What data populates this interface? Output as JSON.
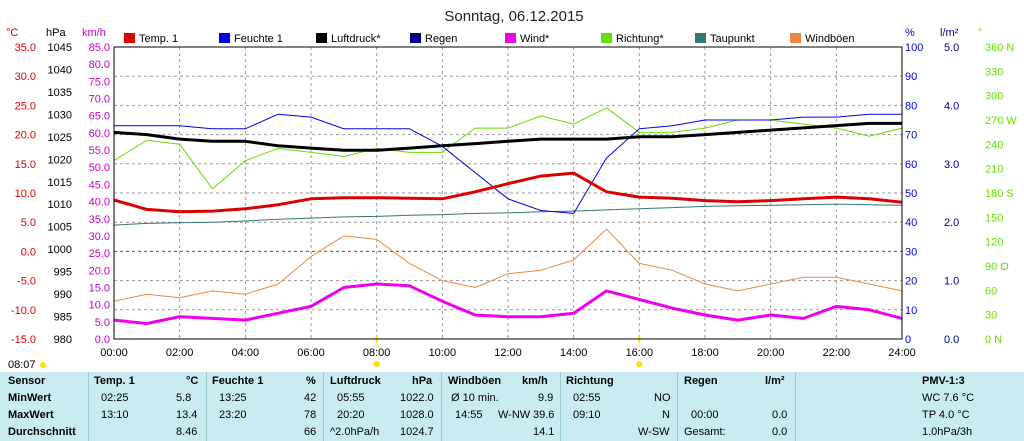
{
  "title": "Sonntag, 06.12.2015",
  "colors": {
    "temp": "#dd0000",
    "humidity": "#0000ee",
    "pressure": "#000000",
    "rain": "#000088",
    "wind": "#ee00ee",
    "direction": "#66dd00",
    "dewpoint": "#337777",
    "gusts": "#ee8844"
  },
  "axes_left": {
    "temp": {
      "unit": "°C",
      "ticks": [
        "35.0",
        "30.0",
        "25.0",
        "20.0",
        "15.0",
        "10.0",
        "5.0",
        "0.0",
        "-5.0",
        "-10.0",
        "-15.0"
      ]
    },
    "pressure": {
      "unit": "hPa",
      "ticks": [
        "1045",
        "1040",
        "1035",
        "1030",
        "1025",
        "1020",
        "1015",
        "1010",
        "1005",
        "1000",
        "995",
        "990",
        "985",
        "980"
      ]
    },
    "wind": {
      "unit": "km/h",
      "ticks": [
        "85.0",
        "80.0",
        "75.0",
        "70.0",
        "65.0",
        "60.0",
        "55.0",
        "50.0",
        "45.0",
        "40.0",
        "35.0",
        "30.0",
        "25.0",
        "20.0",
        "15.0",
        "10.0",
        "5.0",
        "0.0"
      ]
    }
  },
  "axes_right": {
    "humidity": {
      "unit": "%",
      "ticks": [
        "100",
        "90",
        "80",
        "70",
        "60",
        "50",
        "40",
        "30",
        "20",
        "10",
        "0"
      ]
    },
    "rain": {
      "unit": "l/m²",
      "ticks": [
        "5.0",
        "4.0",
        "3.0",
        "2.0",
        "1.0",
        "0.0"
      ]
    },
    "direction": {
      "unit": "°",
      "ticks": [
        "360 N",
        "330",
        "300",
        "270 W",
        "240",
        "210",
        "180 S",
        "150",
        "120",
        "90 O",
        "60",
        "30",
        "0 N"
      ]
    }
  },
  "legend": [
    "Temp. 1",
    "Feuchte 1",
    "Luftdruck*",
    "Regen",
    "Wind*",
    "Richtung*",
    "Taupunkt",
    "Windböen"
  ],
  "time_labels": [
    "00:00",
    "02:00",
    "04:00",
    "06:00",
    "08:00",
    "10:00",
    "12:00",
    "14:00",
    "16:00",
    "18:00",
    "20:00",
    "22:00",
    "24:00"
  ],
  "current_time": "08:07",
  "chart_data": {
    "type": "line",
    "x": [
      0,
      1,
      2,
      3,
      4,
      5,
      6,
      7,
      8,
      9,
      10,
      11,
      12,
      13,
      14,
      15,
      16,
      17,
      18,
      19,
      20,
      21,
      22,
      23,
      24
    ],
    "xlabel": "",
    "xlim": [
      0,
      24
    ],
    "series": [
      {
        "name": "Temp. 1",
        "axis": "°C",
        "ylim": [
          -15,
          35
        ],
        "values": [
          8.8,
          7.2,
          6.8,
          6.9,
          7.3,
          8.0,
          9.0,
          9.2,
          9.2,
          9.1,
          9.0,
          10.2,
          11.6,
          12.9,
          13.4,
          10.2,
          9.3,
          9.1,
          8.7,
          8.5,
          8.7,
          9.0,
          9.3,
          9.0,
          8.4
        ]
      },
      {
        "name": "Feuchte 1",
        "axis": "%",
        "ylim": [
          0,
          100
        ],
        "values": [
          73,
          73,
          73,
          72,
          72,
          77,
          76,
          72,
          72,
          72,
          66,
          57,
          48,
          44,
          43,
          62,
          72,
          73,
          75,
          75,
          75,
          76,
          76,
          77,
          77
        ]
      },
      {
        "name": "Luftdruck*",
        "axis": "hPa",
        "ylim": [
          980,
          1045
        ],
        "values": [
          1026,
          1025.5,
          1024.5,
          1024,
          1024,
          1023,
          1022.5,
          1022,
          1022,
          1022.5,
          1023,
          1023.5,
          1024,
          1024.5,
          1024.5,
          1024.5,
          1025,
          1025,
          1025.5,
          1026,
          1026.5,
          1027,
          1027.5,
          1028,
          1028
        ]
      },
      {
        "name": "Regen",
        "axis": "l/m²",
        "ylim": [
          0,
          5
        ],
        "values": [
          0,
          0,
          0,
          0,
          0,
          0,
          0,
          0,
          0,
          0,
          0,
          0,
          0,
          0,
          0,
          0,
          0,
          0,
          0,
          0,
          0,
          0,
          0,
          0,
          0
        ]
      },
      {
        "name": "Wind*",
        "axis": "km/h",
        "ylim": [
          0,
          85
        ],
        "values": [
          5.5,
          4.5,
          6.5,
          6.0,
          5.5,
          7.5,
          9.5,
          15.0,
          16.0,
          15.5,
          11.0,
          7.0,
          6.5,
          6.5,
          7.5,
          14.0,
          11.5,
          9.0,
          7.0,
          5.5,
          7.0,
          6.0,
          9.5,
          8.5,
          6.0
        ]
      },
      {
        "name": "Richtung*",
        "axis": "°",
        "ylim": [
          0,
          360
        ],
        "values": [
          220,
          245,
          240,
          185,
          220,
          235,
          230,
          225,
          235,
          230,
          230,
          260,
          260,
          275,
          265,
          285,
          255,
          255,
          260,
          270,
          270,
          265,
          260,
          250,
          260
        ]
      },
      {
        "name": "Taupunkt",
        "axis": "°C",
        "ylim": [
          -15,
          35
        ],
        "values": [
          4.5,
          4.8,
          4.9,
          5.0,
          5.2,
          5.5,
          5.7,
          5.9,
          6.0,
          6.2,
          6.3,
          6.5,
          6.6,
          6.8,
          6.9,
          7.1,
          7.3,
          7.5,
          7.7,
          7.8,
          7.9,
          8.0,
          8.1,
          8.0,
          7.9
        ]
      },
      {
        "name": "Windböen",
        "axis": "km/h",
        "ylim": [
          0,
          85
        ],
        "values": [
          11,
          13,
          12,
          14,
          13,
          16,
          24,
          30,
          29,
          22,
          17,
          15,
          19,
          20,
          23,
          32,
          22,
          20,
          16,
          14,
          16,
          18,
          18,
          16,
          14
        ]
      }
    ]
  },
  "stats": {
    "sensor": {
      "header": "Sensor",
      "min": "MinWert",
      "max": "MaxWert",
      "avg": "Durchschnitt"
    },
    "temp": {
      "header": "Temp. 1",
      "unit": "°C",
      "min_time": "02:25",
      "min": "5.8",
      "max_time": "13:10",
      "max": "13.4",
      "avg": "8.46"
    },
    "humidity": {
      "header": "Feuchte 1",
      "unit": "%",
      "min_time": "13:25",
      "min": "42",
      "max_time": "23:20",
      "max": "78",
      "avg": "66"
    },
    "pressure": {
      "header": "Luftdruck",
      "unit": "hPa",
      "min_time": "05:55",
      "min": "1022.0",
      "max_time": "20:20",
      "max": "1028.0",
      "trend": "^2.0hPa/h",
      "avg": "1024.7"
    },
    "gusts": {
      "header": "Windböen",
      "unit": "km/h",
      "avg10_label": "Ø 10 min.",
      "avg10": "9.9",
      "max_time": "14:55",
      "max_dir": "W-NW",
      "max": "39.6",
      "avg": "14.1"
    },
    "direction": {
      "header": "Richtung",
      "min_time": "02:55",
      "min": "NO",
      "max_time": "09:10",
      "max": "N",
      "avg": "W-SW"
    },
    "rain": {
      "header": "Regen",
      "unit": "l/m²",
      "max_time": "00:00",
      "max": "0.0",
      "total_label": "Gesamt:",
      "total": "0.0"
    },
    "pmv": {
      "header": "PMV-1:3",
      "wc": "WC 7.6 °C",
      "tp": "TP 4.0 °C",
      "trend": "1.0hPa/3h"
    }
  }
}
